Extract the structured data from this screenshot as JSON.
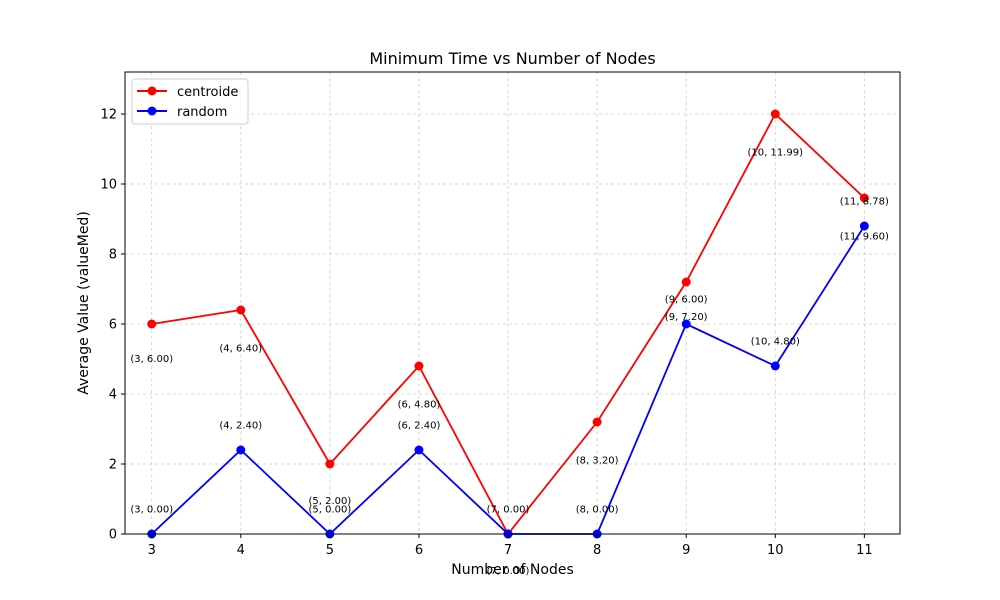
{
  "chart_data": {
    "type": "line",
    "title": "Minimum Time vs Number of Nodes",
    "xlabel": "Number of Nodes",
    "ylabel": "Average Value (valueMed)",
    "x": [
      3,
      4,
      5,
      6,
      7,
      8,
      9,
      10,
      11
    ],
    "xlim": [
      2.7,
      11.4
    ],
    "ylim": [
      0,
      13.2
    ],
    "yticks": [
      0,
      2,
      4,
      6,
      8,
      10,
      12
    ],
    "grid": true,
    "legend_position": "top-left",
    "series": [
      {
        "name": "centroide",
        "color": "#ff0000",
        "values": [
          6.0,
          6.4,
          2.0,
          4.8,
          0.0,
          3.2,
          7.2,
          12.0,
          9.6
        ]
      },
      {
        "name": "random",
        "color": "#0000ff",
        "values": [
          0.0,
          2.4,
          0.0,
          2.4,
          0.0,
          0.0,
          6.0,
          4.8,
          8.8
        ]
      }
    ],
    "annotations": [
      {
        "text": "(3, 6.00)",
        "x": 3,
        "y": 5.0
      },
      {
        "text": "(4, 6.40)",
        "x": 4,
        "y": 5.3
      },
      {
        "text": "(5, 2.00)",
        "x": 5,
        "y": 0.95
      },
      {
        "text": "(6, 4.80)",
        "x": 6,
        "y": 3.7
      },
      {
        "text": "(7, 0.00)",
        "x": 7,
        "y": -1.05
      },
      {
        "text": "(8, 3.20)",
        "x": 8,
        "y": 2.1
      },
      {
        "text": "(9, 6.00)",
        "x": 9,
        "y": 6.7
      },
      {
        "text": "(10, 11.99)",
        "x": 10,
        "y": 10.9
      },
      {
        "text": "(11, 8.78)",
        "x": 11,
        "y": 9.5
      },
      {
        "text": "(3, 0.00)",
        "x": 3,
        "y": 0.7
      },
      {
        "text": "(4, 2.40)",
        "x": 4,
        "y": 3.1
      },
      {
        "text": "(5, 0.00)",
        "x": 5,
        "y": 0.7
      },
      {
        "text": "(6, 2.40)",
        "x": 6,
        "y": 3.1
      },
      {
        "text": "(7, 0.00)",
        "x": 7,
        "y": 0.7
      },
      {
        "text": "(8, 0.00)",
        "x": 8,
        "y": 0.7
      },
      {
        "text": "(9, 7.20)",
        "x": 9,
        "y": 6.2
      },
      {
        "text": "(10, 4.80)",
        "x": 10,
        "y": 5.5
      },
      {
        "text": "(11, 9.60)",
        "x": 11,
        "y": 8.5
      }
    ]
  }
}
